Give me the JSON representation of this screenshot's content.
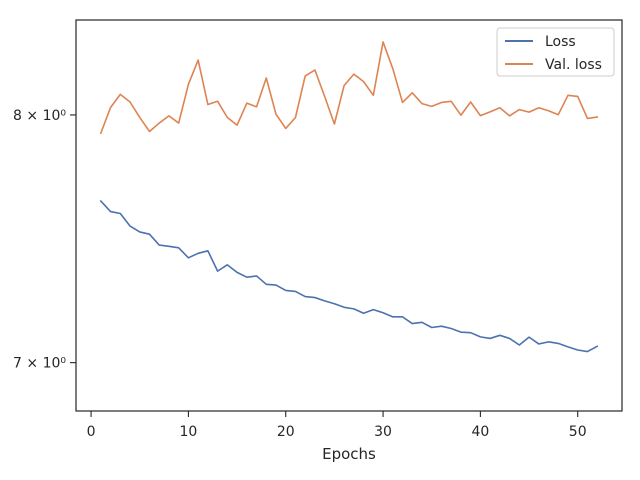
{
  "chart_data": {
    "type": "line",
    "title": "",
    "xlabel": "Epochs",
    "ylabel": "",
    "yscale": "log",
    "xlim": [
      -1.55,
      54.55
    ],
    "ylim": [
      6.82,
      8.42
    ],
    "x_ticks": [
      0,
      10,
      20,
      30,
      40,
      50
    ],
    "y_ticks": [
      {
        "value": 7,
        "label": "7 × 10⁰"
      },
      {
        "value": 8,
        "label": "8 × 10⁰"
      }
    ],
    "grid": false,
    "legend_position": "upper right",
    "x": [
      1,
      2,
      3,
      4,
      5,
      6,
      7,
      8,
      9,
      10,
      11,
      12,
      13,
      14,
      15,
      16,
      17,
      18,
      19,
      20,
      21,
      22,
      23,
      24,
      25,
      26,
      27,
      28,
      29,
      30,
      31,
      32,
      33,
      34,
      35,
      36,
      37,
      38,
      39,
      40,
      41,
      42,
      43,
      44,
      45,
      46,
      47,
      48,
      49,
      50,
      51,
      52
    ],
    "series": [
      {
        "name": "Loss",
        "color": "#4c72b0",
        "values": [
          7.637,
          7.594,
          7.586,
          7.535,
          7.511,
          7.502,
          7.458,
          7.453,
          7.447,
          7.407,
          7.425,
          7.435,
          7.354,
          7.379,
          7.349,
          7.33,
          7.335,
          7.302,
          7.299,
          7.278,
          7.274,
          7.254,
          7.25,
          7.237,
          7.226,
          7.212,
          7.206,
          7.189,
          7.203,
          7.191,
          7.175,
          7.175,
          7.149,
          7.154,
          7.134,
          7.139,
          7.13,
          7.116,
          7.114,
          7.098,
          7.092,
          7.104,
          7.092,
          7.067,
          7.097,
          7.071,
          7.079,
          7.073,
          7.06,
          7.048,
          7.042,
          7.062
        ]
      },
      {
        "name": "Val. loss",
        "color": "#dd8452",
        "values": [
          7.922,
          8.032,
          8.089,
          8.056,
          7.989,
          7.929,
          7.965,
          7.996,
          7.965,
          8.133,
          8.24,
          8.045,
          8.059,
          7.989,
          7.956,
          8.051,
          8.035,
          8.161,
          8.003,
          7.942,
          7.989,
          8.17,
          8.196,
          8.08,
          7.961,
          8.128,
          8.178,
          8.145,
          8.085,
          8.321,
          8.202,
          8.054,
          8.096,
          8.049,
          8.037,
          8.054,
          8.059,
          7.999,
          8.056,
          7.997,
          8.013,
          8.031,
          7.996,
          8.023,
          8.012,
          8.031,
          8.018,
          8.001,
          8.085,
          8.08,
          7.985,
          7.991
        ]
      }
    ]
  }
}
